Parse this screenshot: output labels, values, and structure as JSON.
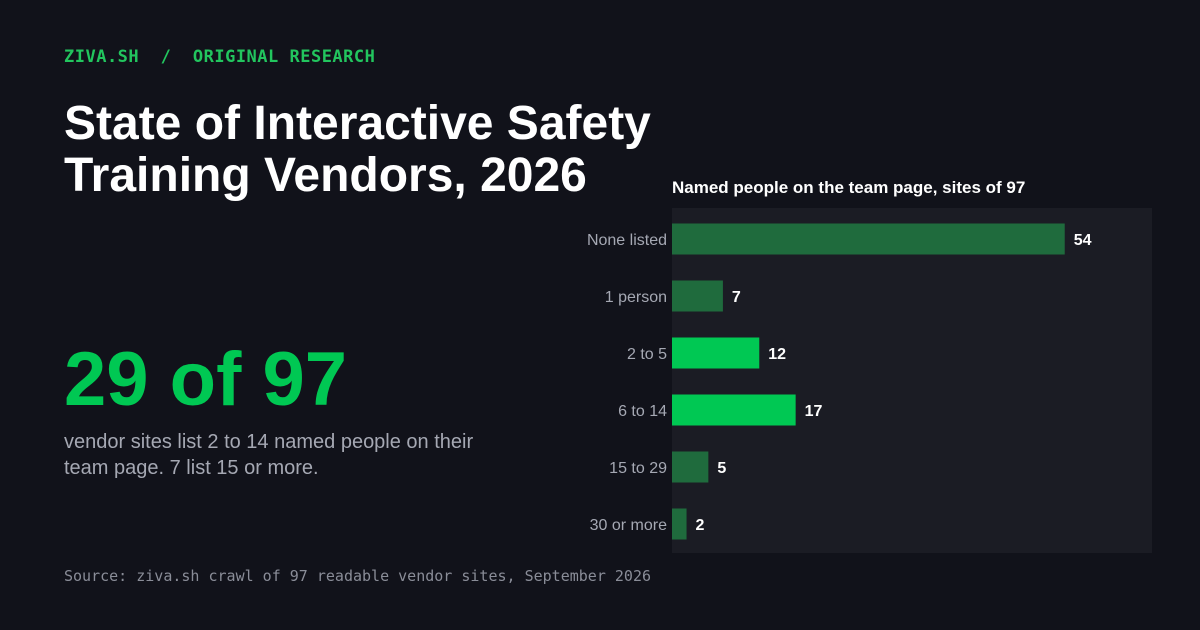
{
  "header": {
    "brand": "ZIVA.SH",
    "separator": "/",
    "section": "ORIGINAL RESEARCH",
    "title": "State of Interactive Safety Training Vendors, 2026"
  },
  "highlight": {
    "number": "29 of 97",
    "caption": "vendor sites list 2 to 14 named people on their team page. 7 list 15 or more."
  },
  "footer": {
    "source": "Source: ziva.sh crawl of 97 readable vendor sites, September 2026"
  },
  "colors": {
    "background": "#11121a",
    "panel": "#1b1c24",
    "accent": "#00c853",
    "muted_bar": "#1f6b3d",
    "brand_green": "#22c55e"
  },
  "chart_data": {
    "type": "bar",
    "orientation": "horizontal",
    "title": "Named people on the team page, sites of 97",
    "categories": [
      "None listed",
      "1 person",
      "2 to 5",
      "6 to 14",
      "15 to 29",
      "30 or more"
    ],
    "values": [
      54,
      7,
      12,
      17,
      5,
      2
    ],
    "highlighted": [
      false,
      false,
      true,
      true,
      false,
      false
    ],
    "xlim": [
      0,
      66
    ],
    "grid": false,
    "legend": "none"
  }
}
